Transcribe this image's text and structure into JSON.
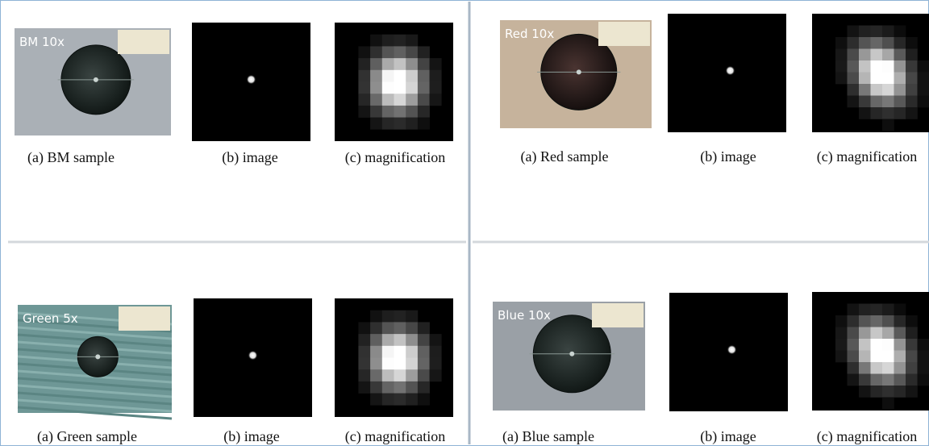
{
  "panels": [
    {
      "label": "BM 10x",
      "captions": [
        "(a) BM sample",
        "(b) image",
        "(c) magnification"
      ]
    },
    {
      "label": "Red 10x",
      "captions": [
        "(a) Red sample",
        "(b) image",
        "(c) magnification"
      ]
    },
    {
      "label": "Green 5x",
      "captions": [
        "(a) Green sample",
        "(b) image",
        "(c) magnification"
      ]
    },
    {
      "label": "Blue 10x",
      "captions": [
        "(a) Blue sample",
        "(b) image",
        "(c) magnification"
      ]
    }
  ]
}
